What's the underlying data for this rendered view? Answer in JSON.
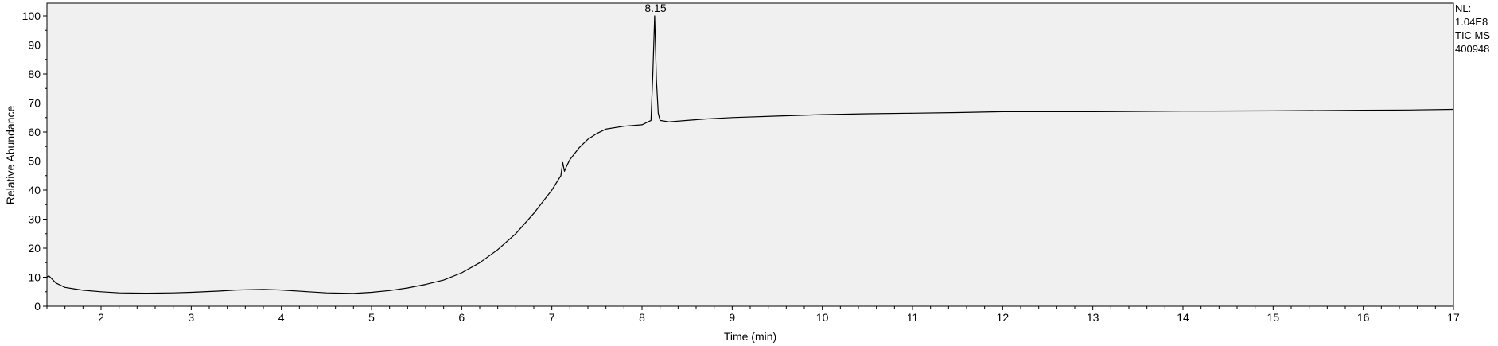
{
  "chart_data": {
    "type": "line",
    "xlabel": "Time (min)",
    "ylabel": "Relative Abundance",
    "xlim": [
      1.4,
      17.0
    ],
    "ylim": [
      0,
      100
    ],
    "x_ticks": [
      2,
      3,
      4,
      5,
      6,
      7,
      8,
      9,
      10,
      11,
      12,
      13,
      14,
      15,
      16,
      17
    ],
    "y_ticks": [
      0,
      10,
      20,
      30,
      40,
      50,
      60,
      70,
      80,
      90,
      100
    ],
    "grid": false,
    "series": [
      {
        "x": [
          1.4,
          1.42,
          1.5,
          1.6,
          1.7,
          1.8,
          2.0,
          2.2,
          2.5,
          2.8,
          3.0,
          3.3,
          3.5,
          3.8,
          4.0,
          4.3,
          4.5,
          4.8,
          5.0,
          5.2,
          5.4,
          5.6,
          5.8,
          6.0,
          6.2,
          6.4,
          6.6,
          6.8,
          7.0,
          7.1,
          7.12,
          7.14,
          7.16,
          7.2,
          7.3,
          7.4,
          7.5,
          7.6,
          7.8,
          8.0,
          8.1,
          8.12,
          8.14,
          8.16,
          8.18,
          8.2,
          8.3,
          8.5,
          8.7,
          9.0,
          9.5,
          10.0,
          10.5,
          11.0,
          11.5,
          12.0,
          13.0,
          14.0,
          15.0,
          16.0,
          16.5,
          17.0
        ],
        "y": [
          10,
          10.5,
          8,
          6.5,
          6.0,
          5.5,
          5.0,
          4.6,
          4.5,
          4.6,
          4.8,
          5.2,
          5.6,
          5.8,
          5.6,
          5.0,
          4.6,
          4.4,
          4.8,
          5.4,
          6.3,
          7.5,
          9.0,
          11.5,
          15.0,
          19.5,
          25.0,
          32.0,
          40.0,
          45.0,
          49.5,
          46.5,
          48.0,
          50.5,
          54.5,
          57.5,
          59.5,
          61.0,
          62.0,
          62.5,
          64.0,
          80.0,
          100.0,
          78.0,
          66.5,
          64.0,
          63.5,
          64.0,
          64.5,
          65.0,
          65.5,
          66.0,
          66.3,
          66.5,
          66.7,
          67.0,
          67.0,
          67.2,
          67.3,
          67.5,
          67.6,
          67.8
        ]
      }
    ],
    "annotations": [
      {
        "text": "8.15",
        "x": 8.15,
        "y": 100
      }
    ]
  },
  "meta": {
    "nl_label": "NL:",
    "nl_value": "1.04E8",
    "filter": "TIC  MS",
    "sample": "400948"
  }
}
